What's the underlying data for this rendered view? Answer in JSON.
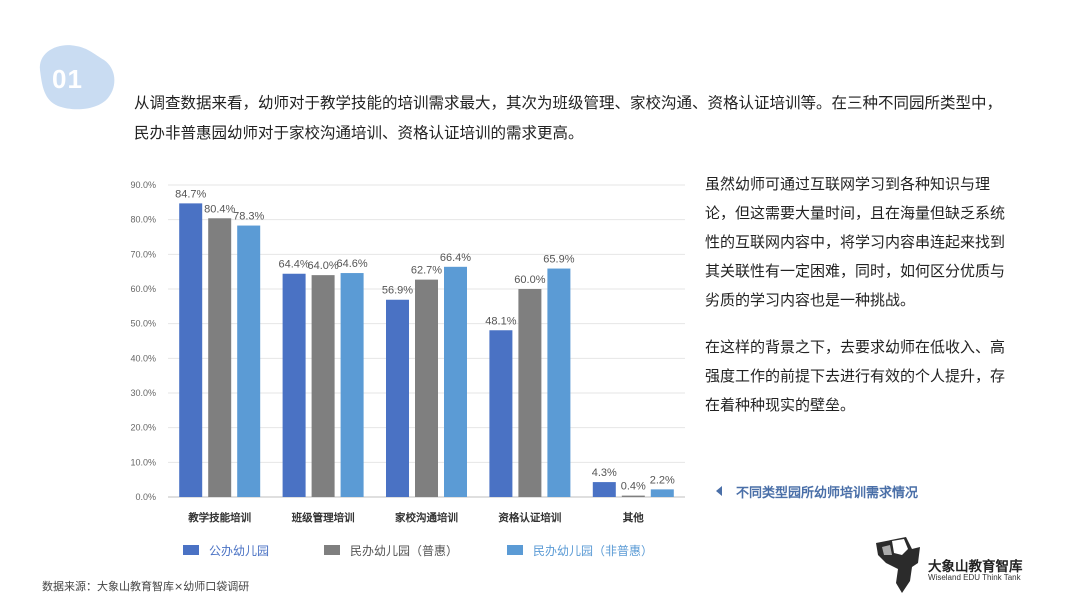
{
  "badge": {
    "number": "01"
  },
  "intro_text": "从调查数据来看，幼师对于教学技能的培训需求最大，其次为班级管理、家校沟通、资格认证培训等。在三种不同园所类型中，民办非普惠园幼师对于家校沟通培训、资格认证培训的需求更高。",
  "side_paragraphs": [
    "虽然幼师可通过互联网学习到各种知识与理论，但这需要大量时间，且在海量但缺乏系统性的互联网内容中，将学习内容串连起来找到其关联性有一定困难，同时，如何区分优质与劣质的学习内容也是一种挑战。",
    "在这样的背景之下，去要求幼师在低收入、高强度工作的前提下去进行有效的个人提升，存在着种种现实的壁垒。"
  ],
  "caption": "不同类型园所幼师培训需求情况",
  "source": "数据来源：大象山教育智库×幼师口袋调研",
  "logo": {
    "cn": "大象山教育智库",
    "en": "Wiseland EDU Think Tank"
  },
  "chart_data": {
    "type": "bar",
    "categories": [
      "教学技能培训",
      "班级管理培训",
      "家校沟通培训",
      "资格认证培训",
      "其他"
    ],
    "series": [
      {
        "name": "公办幼儿园",
        "values": [
          84.7,
          64.4,
          56.9,
          48.1,
          4.3
        ],
        "color": "#4a72c4",
        "labels": [
          "84.7%",
          "64.4%",
          "56.9%",
          "48.1%",
          "4.3%"
        ]
      },
      {
        "name": "民办幼儿园（普惠）",
        "values": [
          80.4,
          64.0,
          62.7,
          60.0,
          0.4
        ],
        "color": "#7f7f7f",
        "labels": [
          "80.4%",
          "64.0%",
          "62.7%",
          "60.0%",
          "0.4%"
        ]
      },
      {
        "name": "民办幼儿园（非普惠）",
        "values": [
          78.3,
          64.6,
          66.4,
          65.9,
          2.2
        ],
        "color": "#5b9bd5",
        "labels": [
          "78.3%",
          "64.6%",
          "66.4%",
          "65.9%",
          "2.2%"
        ]
      }
    ],
    "y_ticks": [
      "0.0%",
      "10.0%",
      "20.0%",
      "30.0%",
      "40.0%",
      "50.0%",
      "60.0%",
      "70.0%",
      "80.0%",
      "90.0%"
    ],
    "ylim": [
      0,
      90
    ],
    "grid": true,
    "legend_position": "bottom"
  }
}
